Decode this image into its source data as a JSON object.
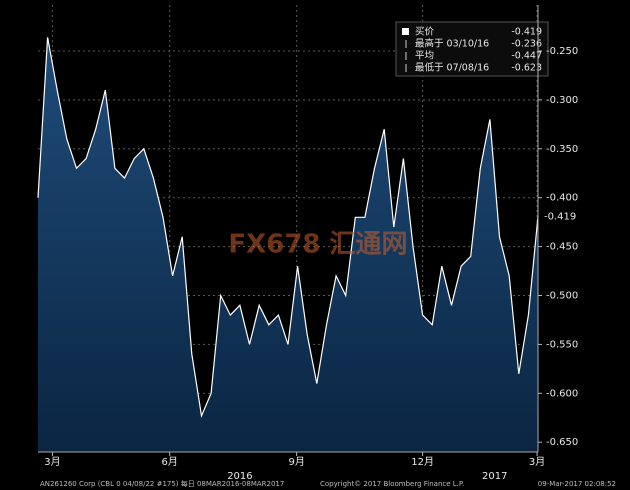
{
  "chart_data": {
    "type": "area",
    "series": [
      {
        "name": "买价",
        "color": "#ffffff",
        "last": -0.419,
        "values": [
          -0.4,
          -0.236,
          -0.29,
          -0.34,
          -0.37,
          -0.36,
          -0.33,
          -0.29,
          -0.37,
          -0.38,
          -0.36,
          -0.35,
          -0.38,
          -0.42,
          -0.48,
          -0.44,
          -0.56,
          -0.623,
          -0.6,
          -0.5,
          -0.52,
          -0.51,
          -0.55,
          -0.51,
          -0.53,
          -0.52,
          -0.55,
          -0.47,
          -0.54,
          -0.59,
          -0.53,
          -0.48,
          -0.5,
          -0.42,
          -0.42,
          -0.37,
          -0.33,
          -0.43,
          -0.36,
          -0.45,
          -0.52,
          -0.53,
          -0.47,
          -0.51,
          -0.47,
          -0.46,
          -0.37,
          -0.32,
          -0.44,
          -0.48,
          -0.58,
          -0.52,
          -0.419
        ]
      }
    ],
    "stats": [
      {
        "label": "最高于 03/10/16",
        "value": -0.236
      },
      {
        "label": "平均",
        "value": -0.447
      },
      {
        "label": "最低于 07/08/16",
        "value": -0.623
      }
    ],
    "xlim": [
      0,
      52
    ],
    "xticks": [
      {
        "value": 1.5,
        "label": "3月"
      },
      {
        "value": 13.7,
        "label": "6月"
      },
      {
        "value": 26.9,
        "label": "9月"
      },
      {
        "value": 40,
        "label": "12月"
      },
      {
        "value": 51.9,
        "label": "3月"
      }
    ],
    "year_labels": [
      {
        "value": 21,
        "label": "2016"
      },
      {
        "value": 47.5,
        "label": "2017"
      }
    ],
    "ylim": [
      -0.66,
      -0.203
    ],
    "yticks": [
      {
        "value": -0.25,
        "label": "-0.250"
      },
      {
        "value": -0.3,
        "label": "-0.300"
      },
      {
        "value": -0.35,
        "label": "-0.350"
      },
      {
        "value": -0.4,
        "label": "-0.400"
      },
      {
        "value": -0.45,
        "label": "-0.450"
      },
      {
        "value": -0.5,
        "label": "-0.500"
      },
      {
        "value": -0.55,
        "label": "-0.550"
      },
      {
        "value": -0.6,
        "label": "-0.600"
      },
      {
        "value": -0.65,
        "label": "-0.650"
      }
    ],
    "grid": true,
    "watermark": "FX678 汇通网",
    "footer": [
      "AN261260 Corp (CBL 0 04/08/22 #175)  每日 08MAR2016-08MAR2017",
      "Copyright© 2017 Bloomberg Finance L.P.",
      "09-Mar-2017 02:08:52"
    ]
  }
}
